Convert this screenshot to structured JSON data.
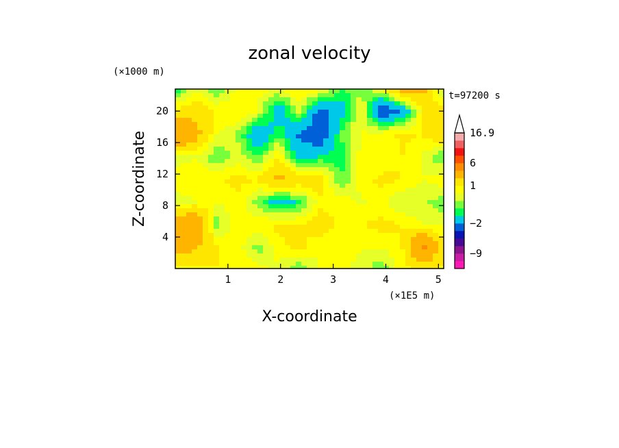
{
  "chart_data": {
    "type": "heatmap",
    "title": "zonal velocity",
    "xlabel": "X-coordinate",
    "ylabel": "Z-coordinate",
    "x_units_label": "(×1E5 m)",
    "y_units_label": "(×1000 m)",
    "time_label": "t=97200 s",
    "xlim": [
      0,
      5.1
    ],
    "ylim": [
      0,
      22.8
    ],
    "x_ticks": [
      1,
      2,
      3,
      4,
      5
    ],
    "y_ticks": [
      4,
      8,
      12,
      16,
      20
    ],
    "grid": false,
    "colorbar": {
      "levels": [
        -13,
        -11,
        -9,
        -7,
        -5,
        -3,
        -2,
        -1,
        -0.5,
        0,
        0.5,
        1,
        2,
        4,
        6,
        9,
        12,
        14.5,
        16.9
      ],
      "colors": [
        "#ff18b4",
        "#c81ea6",
        "#8c148c",
        "#460a96",
        "#0a14b4",
        "#0060d8",
        "#00c8e8",
        "#00ff50",
        "#78ff3c",
        "#e6ff28",
        "#ffff00",
        "#ffe600",
        "#ffb400",
        "#ff8c00",
        "#ff5000",
        "#f01410",
        "#f06060",
        "#f4aaaa"
      ],
      "extend_top_color": "#ffffff",
      "tick_values": [
        16.9,
        6,
        1,
        -2,
        -9
      ],
      "tick_labels": [
        "16.9",
        "6",
        "1",
        "−2",
        "−9"
      ]
    },
    "grid_nx": 14,
    "grid_nz": 9,
    "field": [
      [
        0.4,
        0.8,
        1.0,
        1.0,
        0.8,
        0.3,
        -0.5,
        0.6,
        0.8,
        0.2,
        -0.4,
        0.8,
        1.0,
        0.8
      ],
      [
        3.0,
        2.0,
        1.0,
        0.8,
        -0.3,
        0.8,
        1.2,
        0.5,
        0.8,
        0.6,
        0.5,
        1.0,
        4.5,
        1.0
      ],
      [
        2.5,
        4.0,
        -0.3,
        0.9,
        0.8,
        1.2,
        1.0,
        1.5,
        0.8,
        1.0,
        1.2,
        1.0,
        0.5,
        0.4
      ],
      [
        0.2,
        0.5,
        0.5,
        0.9,
        -0.2,
        -1.5,
        -0.8,
        0.8,
        0.8,
        0.4,
        0.7,
        0.0,
        0.2,
        -0.4
      ],
      [
        0.8,
        1.0,
        0.9,
        1.2,
        1.0,
        2.4,
        1.6,
        1.5,
        -0.5,
        0.7,
        1.2,
        1.0,
        0.5,
        0.9
      ],
      [
        0.2,
        0.5,
        -0.5,
        0.3,
        -0.6,
        1.0,
        -1.5,
        -0.9,
        -0.8,
        0.7,
        0.5,
        1.0,
        0.4,
        -0.6
      ],
      [
        4.5,
        2.5,
        0.5,
        0.0,
        -2.0,
        -0.5,
        -2.2,
        -3.0,
        -0.5,
        0.5,
        0.8,
        1.1,
        1.0,
        2.0
      ],
      [
        1.2,
        1.6,
        0.9,
        1.0,
        0.5,
        -1.8,
        0.2,
        -2.6,
        -1.5,
        0.7,
        -3.0,
        -1.8,
        1.0,
        1.4
      ],
      [
        -1.0,
        0.5,
        -0.5,
        0.6,
        0.7,
        0.5,
        1.0,
        0.8,
        -0.5,
        -0.3,
        0.5,
        2.4,
        2.5,
        -0.5
      ]
    ]
  }
}
